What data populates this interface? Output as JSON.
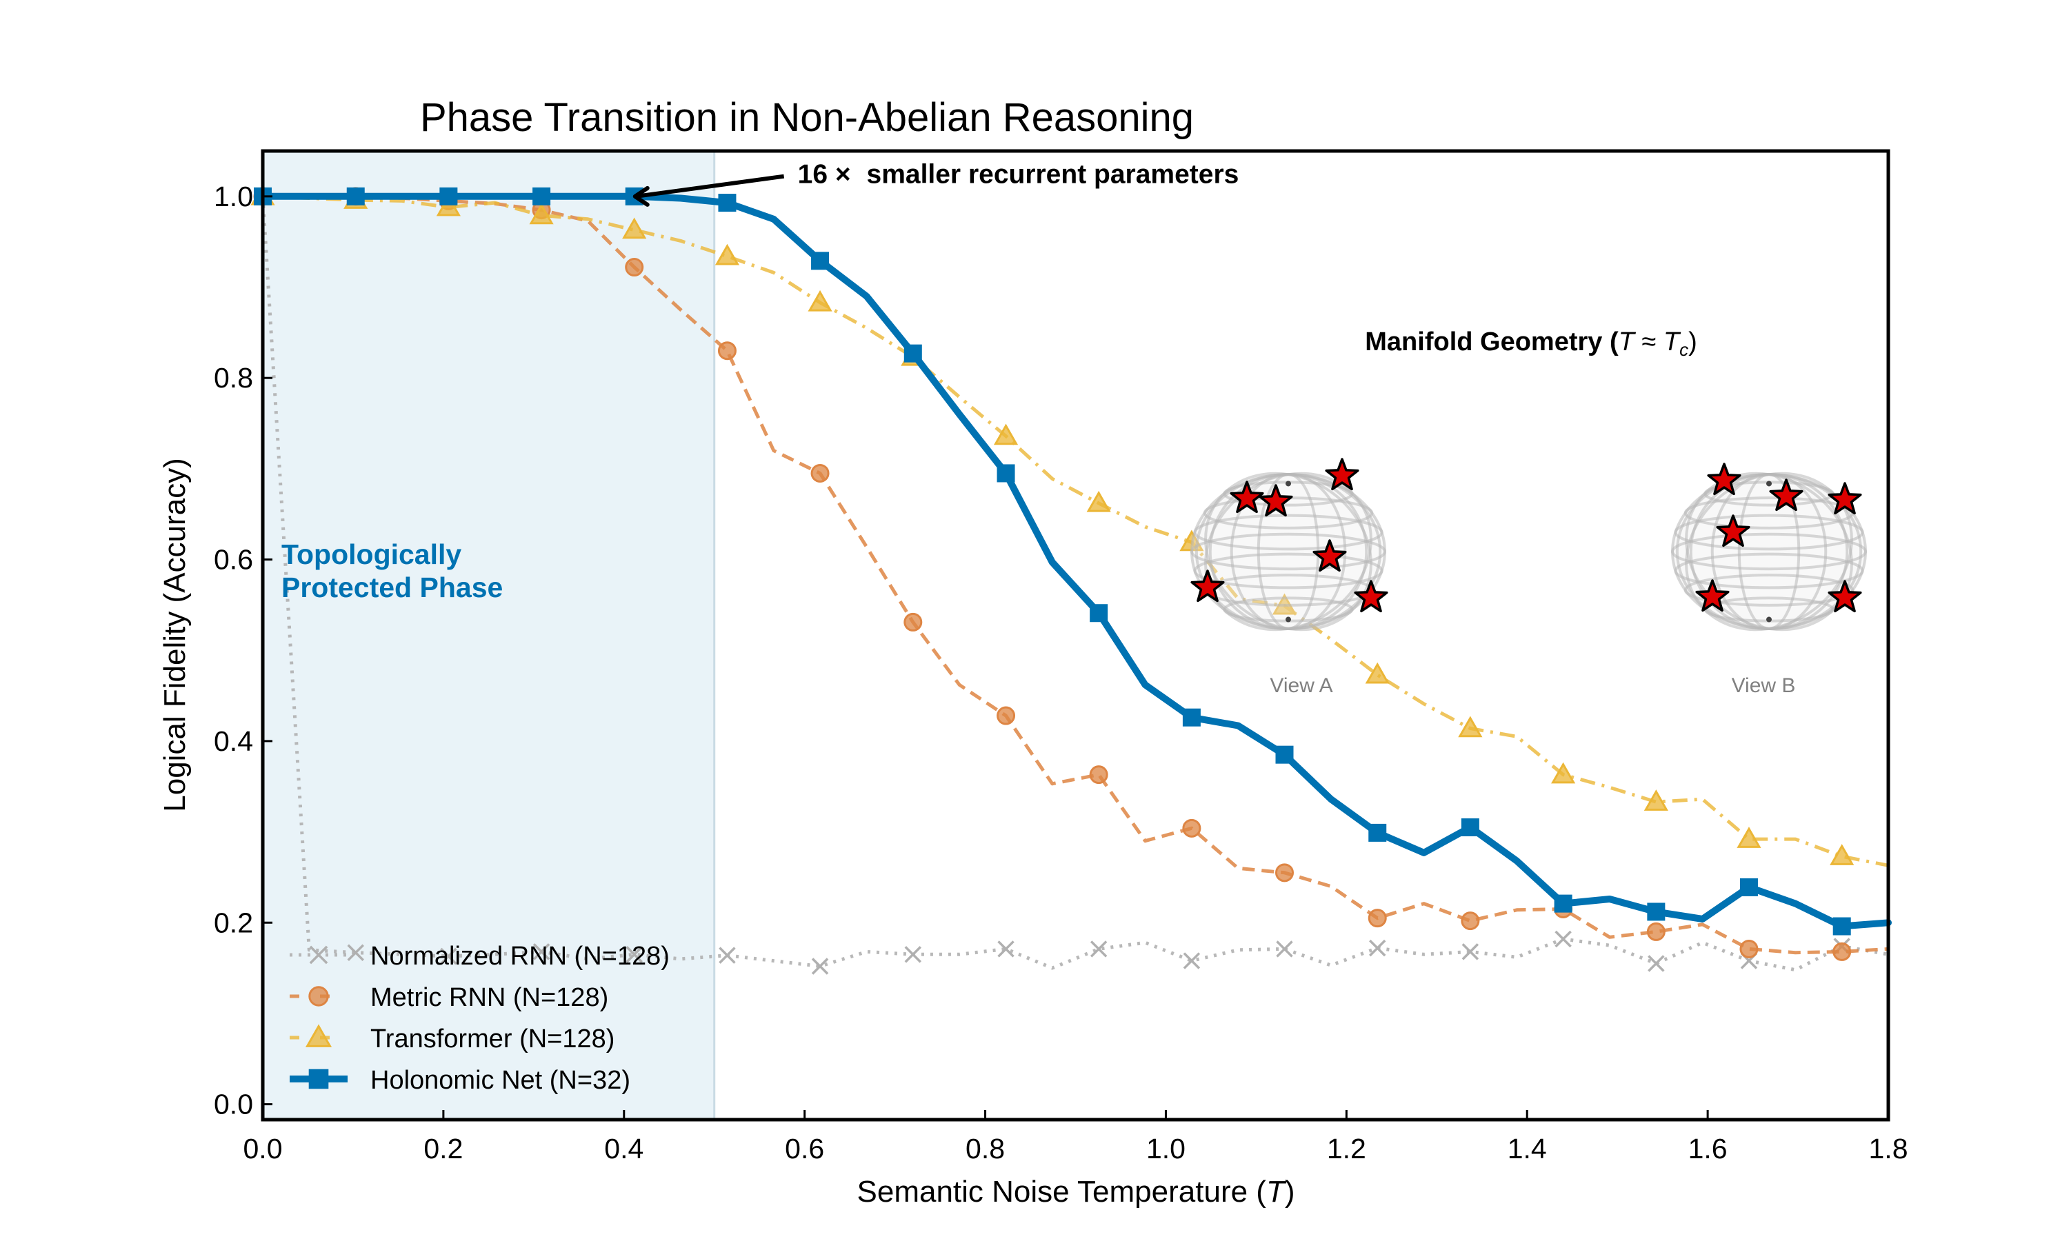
{
  "chart_data": {
    "type": "line",
    "title": "Phase Transition in Non-Abelian Reasoning",
    "xlabel": "Semantic Noise Temperature (T)",
    "xlabel_parts": {
      "prefix": "Semantic Noise Temperature (",
      "var": "T",
      "suffix": ")"
    },
    "ylabel": "Logical Fidelity (Accuracy)",
    "xlim": [
      0.0,
      1.8
    ],
    "ylim": [
      -0.017,
      1.05
    ],
    "xticks": [
      0.0,
      0.2,
      0.4,
      0.6,
      0.8,
      1.0,
      1.2,
      1.4,
      1.6,
      1.8
    ],
    "xtick_labels": [
      "0.0",
      "0.2",
      "0.4",
      "0.6",
      "0.8",
      "1.0",
      "1.2",
      "1.4",
      "1.6",
      "1.8"
    ],
    "yticks": [
      0.0,
      0.2,
      0.4,
      0.6,
      0.8,
      1.0
    ],
    "ytick_labels": [
      "0.0",
      "0.2",
      "0.4",
      "0.6",
      "0.8",
      "1.0"
    ],
    "grid": false,
    "legend_position": "lower-left",
    "shaded_region": {
      "x": [
        0.0,
        0.5
      ],
      "label": "Topologically Protected Phase",
      "label_lines": [
        "Topologically",
        "Protected Phase"
      ],
      "color": "#0072B2"
    },
    "x": [
      0.0,
      0.0514,
      0.1029,
      0.1543,
      0.2057,
      0.2571,
      0.3086,
      0.36,
      0.4114,
      0.4629,
      0.5143,
      0.5657,
      0.6171,
      0.6686,
      0.72,
      0.7714,
      0.8229,
      0.8743,
      0.9257,
      0.9771,
      1.0286,
      1.08,
      1.1314,
      1.1829,
      1.2343,
      1.2857,
      1.3371,
      1.3886,
      1.44,
      1.4914,
      1.5429,
      1.5943,
      1.6457,
      1.6971,
      1.7486,
      1.8
    ],
    "marker_every": 2,
    "series": [
      {
        "name": "Normalized RNN (N=128)",
        "color": "#b0b0b0",
        "linestyle": "dotted",
        "marker": "x",
        "values": [
          1.0,
          0.17,
          0.167,
          0.165,
          0.163,
          0.165,
          0.168,
          0.16,
          0.165,
          0.16,
          0.164,
          0.158,
          0.152,
          0.168,
          0.165,
          0.165,
          0.171,
          0.15,
          0.171,
          0.178,
          0.158,
          0.17,
          0.171,
          0.153,
          0.172,
          0.165,
          0.168,
          0.162,
          0.182,
          0.175,
          0.155,
          0.178,
          0.158,
          0.148,
          0.174,
          0.165
        ]
      },
      {
        "name": "Metric RNN (N=128)",
        "color": "#DE8543",
        "linestyle": "dashed",
        "marker": "o",
        "values": [
          1.0,
          1.0,
          1.0,
          0.998,
          0.995,
          0.992,
          0.985,
          0.973,
          0.922,
          0.875,
          0.83,
          0.72,
          0.695,
          0.614,
          0.531,
          0.462,
          0.428,
          0.353,
          0.363,
          0.29,
          0.304,
          0.26,
          0.255,
          0.24,
          0.205,
          0.221,
          0.202,
          0.214,
          0.215,
          0.184,
          0.19,
          0.198,
          0.171,
          0.167,
          0.168,
          0.171
        ]
      },
      {
        "name": "Transformer (N=128)",
        "color": "#EBB636",
        "linestyle": "dashdot",
        "marker": "^",
        "values": [
          1.0,
          0.998,
          0.996,
          0.995,
          0.988,
          0.993,
          0.979,
          0.975,
          0.963,
          0.951,
          0.934,
          0.916,
          0.883,
          0.855,
          0.823,
          0.779,
          0.736,
          0.689,
          0.662,
          0.636,
          0.619,
          0.557,
          0.549,
          0.512,
          0.473,
          0.441,
          0.414,
          0.405,
          0.363,
          0.349,
          0.333,
          0.336,
          0.292,
          0.292,
          0.273,
          0.263
        ]
      },
      {
        "name": "Holonomic Net (N=32)",
        "color": "#0072B2",
        "linestyle": "solid",
        "marker": "s",
        "values": [
          1.0,
          1.0,
          1.0,
          1.0,
          1.0,
          1.0,
          1.0,
          1.0,
          1.0,
          0.998,
          0.993,
          0.975,
          0.929,
          0.89,
          0.827,
          0.76,
          0.695,
          0.597,
          0.541,
          0.462,
          0.426,
          0.417,
          0.385,
          0.336,
          0.299,
          0.277,
          0.305,
          0.268,
          0.221,
          0.226,
          0.212,
          0.204,
          0.239,
          0.221,
          0.196,
          0.2
        ]
      }
    ],
    "annotations": [
      {
        "text_bold_num": "16",
        "text_times": "×",
        "text": "smaller recurrent parameters",
        "full": "16 × smaller recurrent parameters",
        "arrow_to": [
          0.4,
          1.0
        ],
        "text_at": [
          0.6,
          1.01
        ]
      }
    ],
    "inset": {
      "title": "Manifold Geometry (T ≈ Tc)",
      "title_parts": {
        "prefix": "Manifold Geometry (",
        "var1": "T",
        "approx": " ≈ ",
        "var2": "T",
        "sub": "c",
        "suffix": ")"
      },
      "views": [
        {
          "label": "View A",
          "stars": 6
        },
        {
          "label": "View B",
          "stars": 6
        }
      ],
      "star_color": "#dd0000"
    }
  }
}
